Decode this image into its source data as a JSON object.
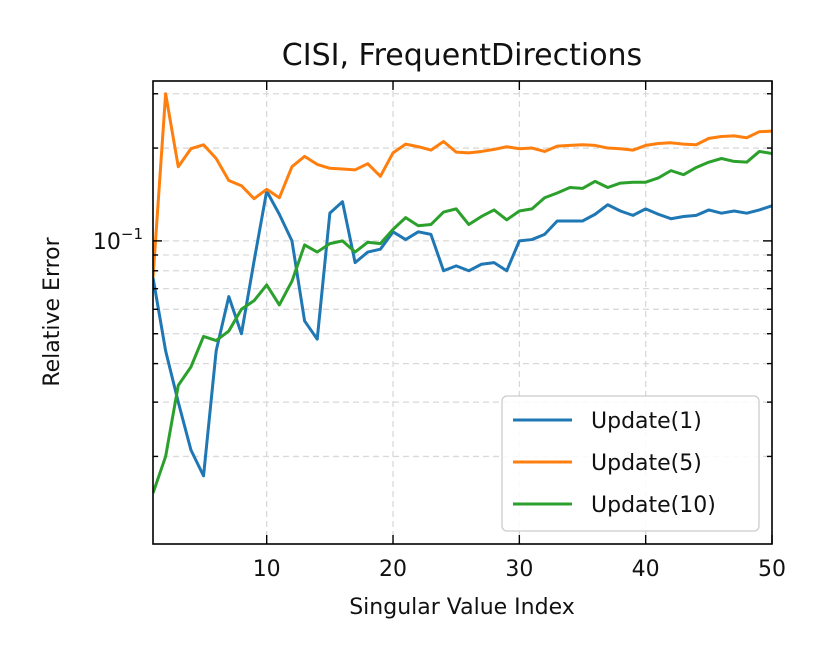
{
  "chart_data": {
    "type": "line",
    "title": "CISI, FrequentDirections",
    "xlabel": "Singular Value Index",
    "ylabel": "Relative Error",
    "xlim": [
      1,
      50
    ],
    "ylim": [
      0.0104,
      0.33
    ],
    "yscale": "log",
    "xticks": [
      10,
      20,
      30,
      40,
      50
    ],
    "yticks_major": [
      {
        "value": 0.1,
        "base": "10",
        "exp": "−1"
      }
    ],
    "grid": true,
    "legend_position": "lower right",
    "x": [
      1,
      2,
      3,
      4,
      5,
      6,
      7,
      8,
      9,
      10,
      11,
      12,
      13,
      14,
      15,
      16,
      17,
      18,
      19,
      20,
      21,
      22,
      23,
      24,
      25,
      26,
      27,
      28,
      29,
      30,
      31,
      32,
      33,
      34,
      35,
      36,
      37,
      38,
      39,
      40,
      41,
      42,
      43,
      44,
      45,
      46,
      47,
      48,
      49,
      50
    ],
    "series": [
      {
        "name": "Update(1)",
        "color": "#1f77b4",
        "values": [
          0.076,
          0.044,
          0.03,
          0.021,
          0.0173,
          0.044,
          0.066,
          0.05,
          0.086,
          0.145,
          0.122,
          0.1,
          0.055,
          0.048,
          0.123,
          0.134,
          0.085,
          0.092,
          0.094,
          0.107,
          0.101,
          0.107,
          0.105,
          0.08,
          0.083,
          0.08,
          0.084,
          0.085,
          0.08,
          0.1,
          0.101,
          0.105,
          0.116,
          0.116,
          0.116,
          0.122,
          0.131,
          0.125,
          0.121,
          0.127,
          0.122,
          0.118,
          0.12,
          0.121,
          0.126,
          0.123,
          0.125,
          0.123,
          0.126,
          0.13
        ]
      },
      {
        "name": "Update(5)",
        "color": "#ff7f0e",
        "values": [
          0.076,
          0.3,
          0.174,
          0.199,
          0.205,
          0.185,
          0.157,
          0.151,
          0.137,
          0.147,
          0.138,
          0.174,
          0.188,
          0.177,
          0.172,
          0.171,
          0.17,
          0.178,
          0.162,
          0.193,
          0.206,
          0.202,
          0.197,
          0.21,
          0.194,
          0.193,
          0.195,
          0.198,
          0.202,
          0.199,
          0.2,
          0.195,
          0.203,
          0.204,
          0.205,
          0.204,
          0.2,
          0.199,
          0.197,
          0.204,
          0.207,
          0.208,
          0.206,
          0.205,
          0.215,
          0.218,
          0.219,
          0.216,
          0.226,
          0.227
        ]
      },
      {
        "name": "Update(10)",
        "color": "#2ca02c",
        "values": [
          0.0152,
          0.02,
          0.034,
          0.039,
          0.049,
          0.0475,
          0.051,
          0.06,
          0.064,
          0.072,
          0.062,
          0.074,
          0.097,
          0.092,
          0.098,
          0.1,
          0.092,
          0.099,
          0.098,
          0.109,
          0.119,
          0.112,
          0.113,
          0.124,
          0.127,
          0.113,
          0.12,
          0.126,
          0.117,
          0.125,
          0.127,
          0.138,
          0.143,
          0.149,
          0.148,
          0.156,
          0.149,
          0.154,
          0.155,
          0.155,
          0.16,
          0.169,
          0.164,
          0.173,
          0.18,
          0.185,
          0.181,
          0.18,
          0.195,
          0.192
        ]
      }
    ]
  }
}
